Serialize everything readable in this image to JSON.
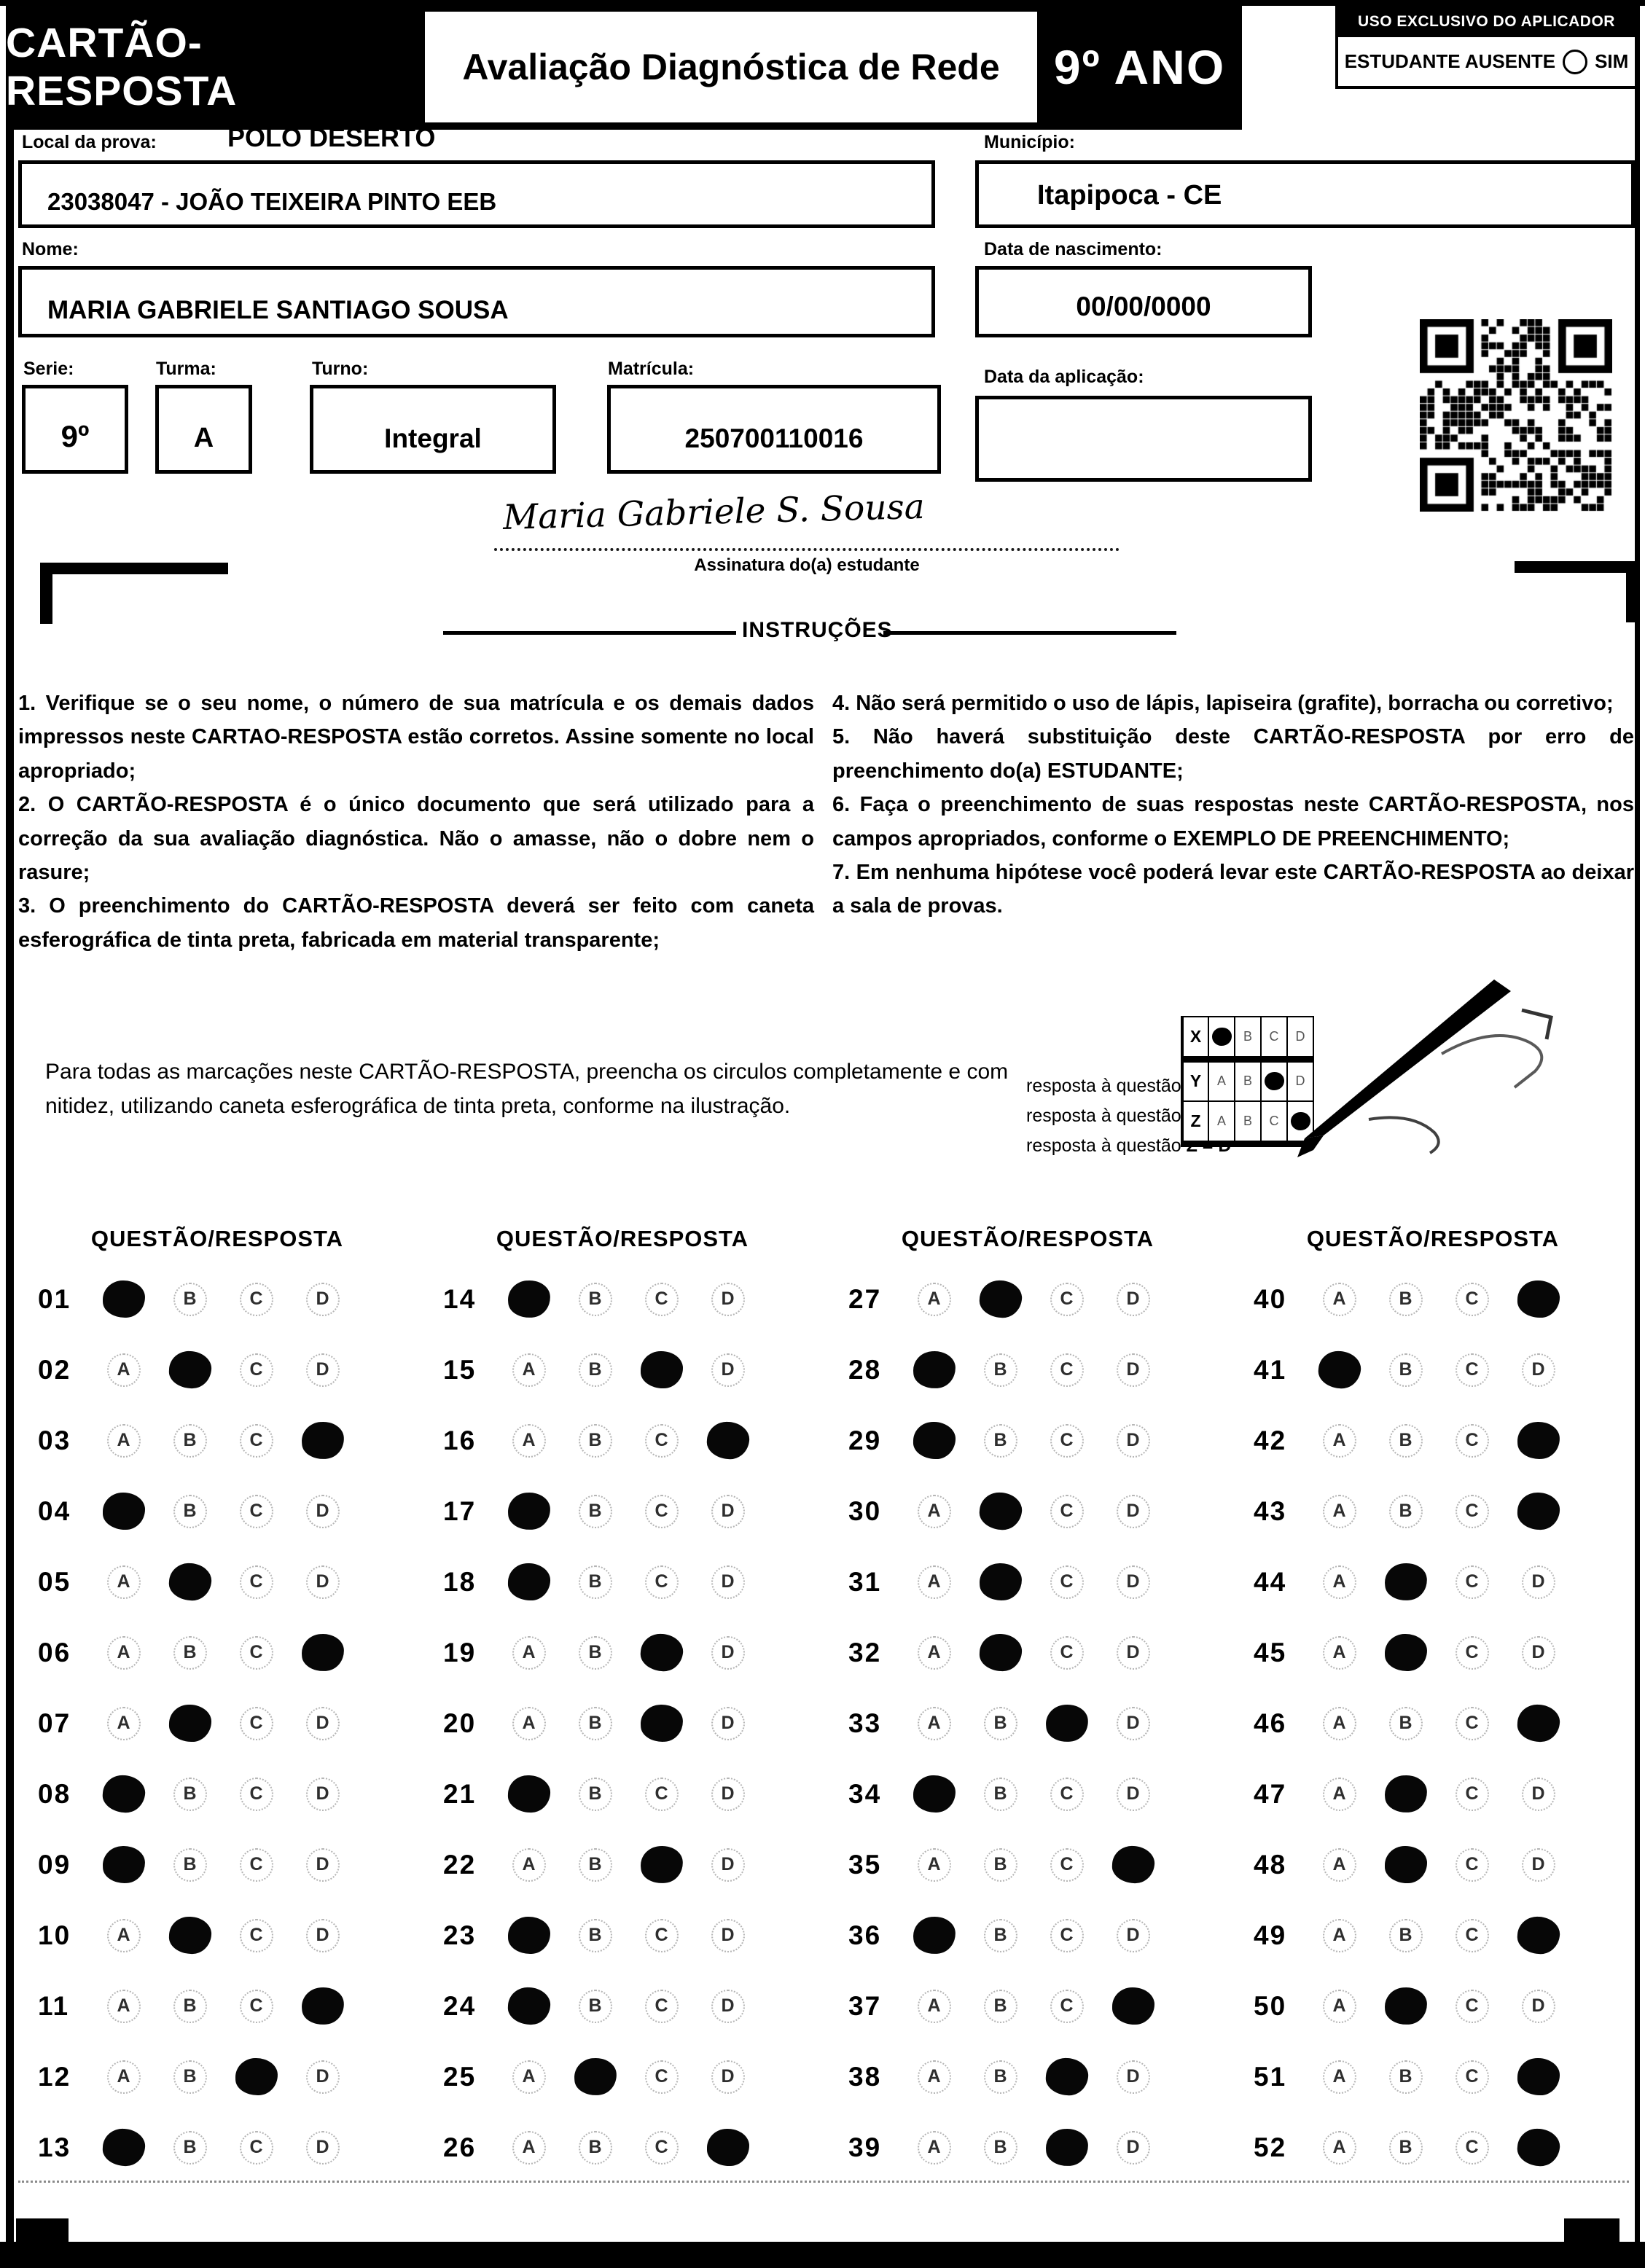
{
  "header": {
    "title": "CARTÃO-RESPOSTA",
    "subtitle": "Avaliação Diagnóstica de Rede",
    "grade": "9º ANO",
    "aplicador": {
      "title": "USO EXCLUSIVO DO APLICADOR",
      "absent_label": "ESTUDANTE AUSENTE",
      "absent_option": "SIM"
    }
  },
  "form": {
    "local_label": "Local da prova:",
    "local_value": "POLO DESERTO",
    "school_value": "23038047 - JOÃO TEIXEIRA PINTO EEB",
    "municipio_label": "Município:",
    "municipio_value": "Itapipoca - CE",
    "nome_label": "Nome:",
    "nome_value": "MARIA GABRIELE SANTIAGO SOUSA",
    "nascimento_label": "Data de nascimento:",
    "nascimento_value": "00/00/0000",
    "serie_label": "Serie:",
    "serie_value": "9º",
    "turma_label": "Turma:",
    "turma_value": "A",
    "turno_label": "Turno:",
    "turno_value": "Integral",
    "matricula_label": "Matrícula:",
    "matricula_value": "250700110016",
    "aplicacao_label": "Data da aplicação:",
    "aplicacao_value": ""
  },
  "signature": {
    "value": "Maria Gabriele S. Sousa",
    "caption": "Assinatura do(a) estudante"
  },
  "instructions": {
    "title": "INSTRUÇÕES",
    "left": [
      "1. Verifique se o seu nome, o número de sua matrícula e os demais dados impressos neste CARTAO-RESPOSTA estão corretos. Assine somente no local apropriado;",
      "2. O CARTÃO-RESPOSTA é o único documento que será utilizado para a correção da sua avaliação diagnóstica. Não o amasse, não o dobre nem o rasure;",
      "3. O preenchimento do CARTÃO-RESPOSTA deverá ser feito com caneta esferográfica de tinta preta, fabricada em material transparente;"
    ],
    "right": [
      "4. Não será permitido o uso de lápis, lapiseira (grafite), borracha ou corretivo;",
      "5. Não haverá substituição deste CARTÃO-RESPOSTA por erro de preenchimento do(a) ESTUDANTE;",
      "6. Faça o preenchimento de suas respostas neste CARTÃO-RESPOSTA, nos campos apropriados, conforme o EXEMPLO DE PREENCHIMENTO;",
      "7. Em nenhuma hipótese você poderá levar este CARTÃO-RESPOSTA ao deixar a sala de provas."
    ]
  },
  "example": {
    "paragraph": "Para todas as marcações neste CARTÃO-RESPOSTA, preencha os circulos completamente e com nitidez, utilizando caneta esferográfica de tinta preta, conforme na ilustração.",
    "legend": [
      {
        "prefix": "resposta à questão ",
        "value": "X = A"
      },
      {
        "prefix": "resposta à questão ",
        "value": "Y = C"
      },
      {
        "prefix": "resposta à questão ",
        "value": "Z = D"
      }
    ],
    "options": [
      "A",
      "B",
      "C",
      "D"
    ],
    "rows": [
      {
        "label": "X",
        "answer": "A"
      },
      {
        "label": "Y",
        "answer": "C"
      },
      {
        "label": "Z",
        "answer": "D"
      }
    ]
  },
  "answer_grid": {
    "column_header": "QUESTÃO/RESPOSTA",
    "options": [
      "A",
      "B",
      "C",
      "D"
    ],
    "columns": [
      [
        {
          "n": "01",
          "answer": "A"
        },
        {
          "n": "02",
          "answer": "B"
        },
        {
          "n": "03",
          "answer": "D"
        },
        {
          "n": "04",
          "answer": "A"
        },
        {
          "n": "05",
          "answer": "B"
        },
        {
          "n": "06",
          "answer": "D"
        },
        {
          "n": "07",
          "answer": "B"
        },
        {
          "n": "08",
          "answer": "A"
        },
        {
          "n": "09",
          "answer": "A"
        },
        {
          "n": "10",
          "answer": "B"
        },
        {
          "n": "11",
          "answer": "D"
        },
        {
          "n": "12",
          "answer": "C"
        },
        {
          "n": "13",
          "answer": "A"
        }
      ],
      [
        {
          "n": "14",
          "answer": "A"
        },
        {
          "n": "15",
          "answer": "C"
        },
        {
          "n": "16",
          "answer": "D"
        },
        {
          "n": "17",
          "answer": "A"
        },
        {
          "n": "18",
          "answer": "A"
        },
        {
          "n": "19",
          "answer": "C"
        },
        {
          "n": "20",
          "answer": "C"
        },
        {
          "n": "21",
          "answer": "A"
        },
        {
          "n": "22",
          "answer": "C"
        },
        {
          "n": "23",
          "answer": "A"
        },
        {
          "n": "24",
          "answer": "A"
        },
        {
          "n": "25",
          "answer": "B"
        },
        {
          "n": "26",
          "answer": "D"
        }
      ],
      [
        {
          "n": "27",
          "answer": "B"
        },
        {
          "n": "28",
          "answer": "A"
        },
        {
          "n": "29",
          "answer": "A"
        },
        {
          "n": "30",
          "answer": "B"
        },
        {
          "n": "31",
          "answer": "B"
        },
        {
          "n": "32",
          "answer": "B"
        },
        {
          "n": "33",
          "answer": "C"
        },
        {
          "n": "34",
          "answer": "A"
        },
        {
          "n": "35",
          "answer": "D"
        },
        {
          "n": "36",
          "answer": "A"
        },
        {
          "n": "37",
          "answer": "D"
        },
        {
          "n": "38",
          "answer": "C"
        },
        {
          "n": "39",
          "answer": "C"
        }
      ],
      [
        {
          "n": "40",
          "answer": "D"
        },
        {
          "n": "41",
          "answer": "A"
        },
        {
          "n": "42",
          "answer": "D"
        },
        {
          "n": "43",
          "answer": "D"
        },
        {
          "n": "44",
          "answer": "B"
        },
        {
          "n": "45",
          "answer": "B"
        },
        {
          "n": "46",
          "answer": "D"
        },
        {
          "n": "47",
          "answer": "B"
        },
        {
          "n": "48",
          "answer": "B"
        },
        {
          "n": "49",
          "answer": "D"
        },
        {
          "n": "50",
          "answer": "B"
        },
        {
          "n": "51",
          "answer": "D"
        },
        {
          "n": "52",
          "answer": "D"
        }
      ]
    ]
  }
}
